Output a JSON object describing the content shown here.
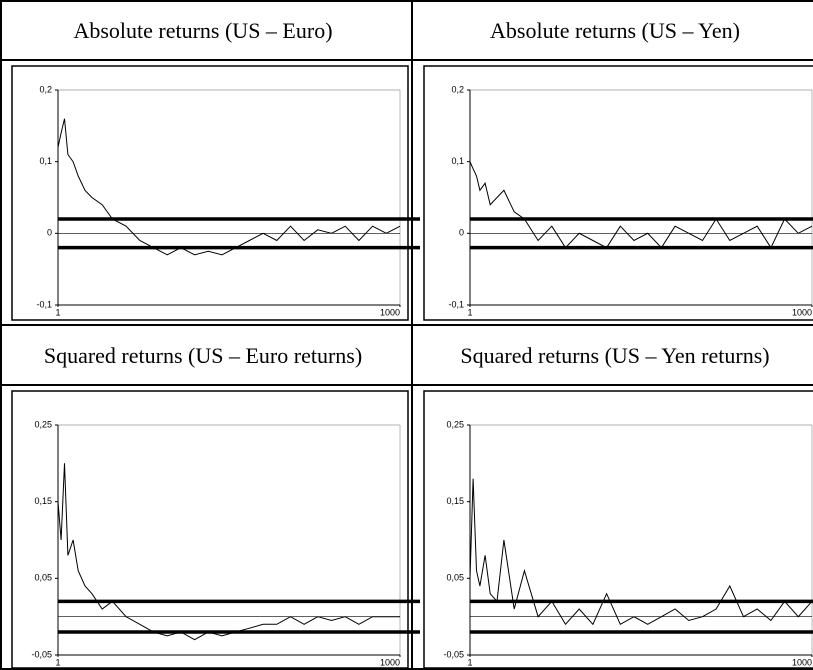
{
  "chart_data": [
    {
      "type": "line",
      "title": "Absolute returns (US – Euro)",
      "x": [
        1,
        10,
        20,
        30,
        45,
        60,
        80,
        100,
        130,
        160,
        200,
        240,
        280,
        320,
        360,
        400,
        440,
        480,
        520,
        560,
        600,
        640,
        680,
        720,
        760,
        800,
        840,
        880,
        920,
        960,
        1000
      ],
      "values": [
        0.12,
        0.14,
        0.16,
        0.11,
        0.1,
        0.08,
        0.06,
        0.05,
        0.04,
        0.02,
        0.01,
        -0.01,
        -0.02,
        -0.03,
        -0.02,
        -0.03,
        -0.025,
        -0.03,
        -0.02,
        -0.01,
        0,
        -0.01,
        0.01,
        -0.01,
        0.005,
        0,
        0.01,
        -0.01,
        0.01,
        0,
        0.01
      ],
      "color": "#000000",
      "xlim": [
        1,
        1000
      ],
      "xticks": [
        1,
        1000
      ],
      "ylim": [
        -0.1,
        0.2
      ],
      "yticks": [
        {
          "value": 0.2,
          "label": "0,2"
        },
        {
          "value": 0.1,
          "label": "0,1"
        },
        0,
        {
          "value": -0.1,
          "label": "-0,1"
        }
      ],
      "bands": [
        0.02,
        -0.02
      ],
      "reference_line": 0
    },
    {
      "type": "line",
      "title": "Absolute returns (US – Yen)",
      "x": [
        1,
        10,
        20,
        30,
        45,
        60,
        80,
        100,
        130,
        160,
        200,
        240,
        280,
        320,
        360,
        400,
        440,
        480,
        520,
        560,
        600,
        640,
        680,
        720,
        760,
        800,
        840,
        880,
        920,
        960,
        1000
      ],
      "values": [
        0.1,
        0.09,
        0.08,
        0.06,
        0.07,
        0.04,
        0.05,
        0.06,
        0.03,
        0.02,
        -0.01,
        0.01,
        -0.02,
        0,
        -0.01,
        -0.02,
        0.01,
        -0.01,
        0,
        -0.02,
        0.01,
        0,
        -0.01,
        0.02,
        -0.01,
        0,
        0.01,
        -0.02,
        0.02,
        0,
        0.01
      ],
      "color": "#000000",
      "xlim": [
        1,
        1000
      ],
      "xticks": [
        1,
        1000
      ],
      "ylim": [
        -0.1,
        0.2
      ],
      "yticks": [
        {
          "value": 0.2,
          "label": "0,2"
        },
        {
          "value": 0.1,
          "label": "0,1"
        },
        0,
        {
          "value": -0.1,
          "label": "-0,1"
        }
      ],
      "bands": [
        0.02,
        -0.02
      ],
      "reference_line": 0
    },
    {
      "type": "line",
      "title": "Squared returns (US – Euro returns)",
      "x": [
        1,
        10,
        20,
        30,
        45,
        60,
        80,
        100,
        130,
        160,
        200,
        240,
        280,
        320,
        360,
        400,
        440,
        480,
        520,
        560,
        600,
        640,
        680,
        720,
        760,
        800,
        840,
        880,
        920,
        960,
        1000
      ],
      "values": [
        0.15,
        0.1,
        0.2,
        0.08,
        0.1,
        0.06,
        0.04,
        0.03,
        0.01,
        0.02,
        0,
        -0.01,
        -0.02,
        -0.025,
        -0.02,
        -0.03,
        -0.02,
        -0.025,
        -0.02,
        -0.015,
        -0.01,
        -0.01,
        0,
        -0.01,
        0,
        -0.005,
        0,
        -0.01,
        0,
        0,
        0
      ],
      "color": "#000000",
      "xlim": [
        1,
        1000
      ],
      "xticks": [
        1,
        1000
      ],
      "ylim": [
        -0.05,
        0.25
      ],
      "yticks": [
        {
          "value": 0.25,
          "label": "0,25"
        },
        {
          "value": 0.15,
          "label": "0,15"
        },
        {
          "value": 0.05,
          "label": "0,05"
        },
        {
          "value": -0.05,
          "label": "-0,05"
        }
      ],
      "bands": [
        0.02,
        -0.02
      ],
      "reference_line": 0
    },
    {
      "type": "line",
      "title": "Squared returns (US – Yen returns)",
      "x": [
        1,
        10,
        20,
        30,
        45,
        60,
        80,
        100,
        130,
        160,
        200,
        240,
        280,
        320,
        360,
        400,
        440,
        480,
        520,
        560,
        600,
        640,
        680,
        720,
        760,
        800,
        840,
        880,
        920,
        960,
        1000
      ],
      "values": [
        0.05,
        0.18,
        0.06,
        0.04,
        0.08,
        0.03,
        0.02,
        0.1,
        0.01,
        0.06,
        0,
        0.02,
        -0.01,
        0.01,
        -0.01,
        0.03,
        -0.01,
        0,
        -0.01,
        0,
        0.01,
        -0.005,
        0,
        0.01,
        0.04,
        0,
        0.01,
        -0.005,
        0.02,
        0,
        0.02
      ],
      "color": "#000000",
      "xlim": [
        1,
        1000
      ],
      "xticks": [
        1,
        1000
      ],
      "ylim": [
        -0.05,
        0.25
      ],
      "yticks": [
        {
          "value": 0.25,
          "label": "0,25"
        },
        {
          "value": 0.15,
          "label": "0,15"
        },
        {
          "value": 0.05,
          "label": "0,05"
        },
        {
          "value": -0.05,
          "label": "-0,05"
        }
      ],
      "bands": [
        0.02,
        -0.02
      ],
      "reference_line": 0
    }
  ]
}
